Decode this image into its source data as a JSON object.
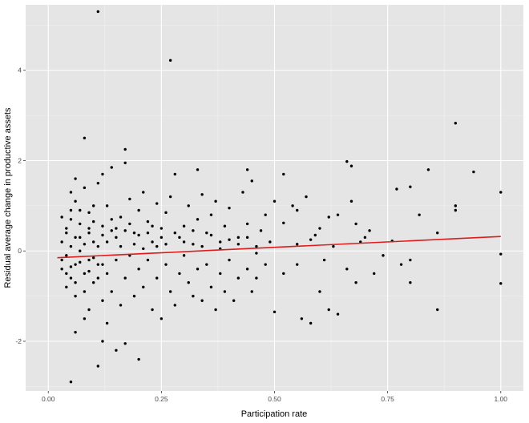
{
  "chart_data": {
    "type": "scatter",
    "title": "",
    "xlabel": "Participation rate",
    "ylabel": "Residual average change in productive assets",
    "xlim": [
      -0.05,
      1.05
    ],
    "ylim": [
      -3.1,
      5.45
    ],
    "x_ticks": [
      {
        "value": 0.0,
        "label": "0.00"
      },
      {
        "value": 0.25,
        "label": "0.25"
      },
      {
        "value": 0.5,
        "label": "0.50"
      },
      {
        "value": 0.75,
        "label": "0.75"
      },
      {
        "value": 1.0,
        "label": "1.00"
      }
    ],
    "y_ticks": [
      {
        "value": -2,
        "label": "-2"
      },
      {
        "value": 0,
        "label": "0"
      },
      {
        "value": 2,
        "label": "2"
      },
      {
        "value": 4,
        "label": "4"
      }
    ],
    "grid": true,
    "background": "#e5e5e5",
    "grid_color": "#ffffff",
    "point_color": "#000000",
    "fit_line_color": "#dd1c1c",
    "fit_line": {
      "x": [
        0.02,
        1.0
      ],
      "y": [
        -0.15,
        0.32
      ]
    },
    "series": [
      {
        "points": [
          [
            0.11,
            5.3
          ],
          [
            0.27,
            4.22
          ],
          [
            0.08,
            2.5
          ],
          [
            0.17,
            2.25
          ],
          [
            0.9,
            2.83
          ],
          [
            0.17,
            1.95
          ],
          [
            0.66,
            1.98
          ],
          [
            0.67,
            1.88
          ],
          [
            0.94,
            1.75
          ],
          [
            0.84,
            1.8
          ],
          [
            0.44,
            1.8
          ],
          [
            0.52,
            1.7
          ],
          [
            0.33,
            1.8
          ],
          [
            0.28,
            1.7
          ],
          [
            0.14,
            1.85
          ],
          [
            0.12,
            1.7
          ],
          [
            0.45,
            1.55
          ],
          [
            0.8,
            1.42
          ],
          [
            0.77,
            1.37
          ],
          [
            1.0,
            1.3
          ],
          [
            0.9,
            1.0
          ],
          [
            0.9,
            0.9
          ],
          [
            0.82,
            0.8
          ],
          [
            0.86,
            0.4
          ],
          [
            0.76,
            0.22
          ],
          [
            0.71,
            0.45
          ],
          [
            0.7,
            0.3
          ],
          [
            0.68,
            0.6
          ],
          [
            0.67,
            1.1
          ],
          [
            0.64,
            0.8
          ],
          [
            0.62,
            0.75
          ],
          [
            0.6,
            0.5
          ],
          [
            0.59,
            0.35
          ],
          [
            0.57,
            1.2
          ],
          [
            0.55,
            0.9
          ],
          [
            0.54,
            1.0
          ],
          [
            0.52,
            0.62
          ],
          [
            0.5,
            1.1
          ],
          [
            0.48,
            0.8
          ],
          [
            0.47,
            0.45
          ],
          [
            0.46,
            0.1
          ],
          [
            0.44,
            0.6
          ],
          [
            0.43,
            1.3
          ],
          [
            0.42,
            0.3
          ],
          [
            0.4,
            0.95
          ],
          [
            0.39,
            0.55
          ],
          [
            0.38,
            0.2
          ],
          [
            0.37,
            1.1
          ],
          [
            0.36,
            0.8
          ],
          [
            0.35,
            0.4
          ],
          [
            0.34,
            1.25
          ],
          [
            0.33,
            0.7
          ],
          [
            0.32,
            0.15
          ],
          [
            0.31,
            1.0
          ],
          [
            0.3,
            0.55
          ],
          [
            0.29,
            0.3
          ],
          [
            0.27,
            1.2
          ],
          [
            0.26,
            0.85
          ],
          [
            0.25,
            0.5
          ],
          [
            0.24,
            1.05
          ],
          [
            0.23,
            0.2
          ],
          [
            0.22,
            0.65
          ],
          [
            0.21,
            1.3
          ],
          [
            0.2,
            0.9
          ],
          [
            0.19,
            0.4
          ],
          [
            0.18,
            1.15
          ],
          [
            0.16,
            0.75
          ],
          [
            0.15,
            0.3
          ],
          [
            0.13,
            1.0
          ],
          [
            0.12,
            0.55
          ],
          [
            0.11,
            1.5
          ],
          [
            0.1,
            0.2
          ],
          [
            0.09,
            0.85
          ],
          [
            0.08,
            1.4
          ],
          [
            0.07,
            0.6
          ],
          [
            0.06,
            1.1
          ],
          [
            0.05,
            0.9
          ],
          [
            0.04,
            0.4
          ],
          [
            0.03,
            0.75
          ],
          [
            0.06,
            1.6
          ],
          [
            0.05,
            1.3
          ],
          [
            0.07,
            0.3
          ],
          [
            0.09,
            0.5
          ],
          [
            0.1,
            1.0
          ],
          [
            0.14,
            0.45
          ],
          [
            0.05,
            0.1
          ],
          [
            0.04,
            -0.1
          ],
          [
            0.06,
            -0.3
          ],
          [
            0.07,
            0.0
          ],
          [
            0.08,
            -0.5
          ],
          [
            0.05,
            -0.6
          ],
          [
            0.04,
            -0.8
          ],
          [
            0.06,
            -1.0
          ],
          [
            0.03,
            -0.4
          ],
          [
            0.09,
            -0.2
          ],
          [
            0.1,
            -0.7
          ],
          [
            0.11,
            -0.3
          ],
          [
            0.12,
            -1.1
          ],
          [
            0.13,
            -0.5
          ],
          [
            0.14,
            -0.9
          ],
          [
            0.15,
            -0.2
          ],
          [
            0.16,
            -1.2
          ],
          [
            0.17,
            -0.6
          ],
          [
            0.18,
            -0.1
          ],
          [
            0.19,
            -1.0
          ],
          [
            0.2,
            -0.4
          ],
          [
            0.21,
            -0.8
          ],
          [
            0.22,
            -0.2
          ],
          [
            0.23,
            -1.3
          ],
          [
            0.24,
            -0.6
          ],
          [
            0.25,
            -1.5
          ],
          [
            0.26,
            -0.3
          ],
          [
            0.27,
            -0.9
          ],
          [
            0.28,
            -1.2
          ],
          [
            0.29,
            -0.5
          ],
          [
            0.3,
            -0.1
          ],
          [
            0.31,
            -0.7
          ],
          [
            0.32,
            -1.0
          ],
          [
            0.33,
            -0.4
          ],
          [
            0.34,
            -1.1
          ],
          [
            0.35,
            -0.3
          ],
          [
            0.36,
            -0.8
          ],
          [
            0.37,
            -1.3
          ],
          [
            0.38,
            -0.5
          ],
          [
            0.39,
            -0.9
          ],
          [
            0.4,
            -0.2
          ],
          [
            0.41,
            -1.1
          ],
          [
            0.42,
            -0.6
          ],
          [
            0.44,
            -0.4
          ],
          [
            0.45,
            -0.9
          ],
          [
            0.46,
            -0.6
          ],
          [
            0.48,
            -0.3
          ],
          [
            0.5,
            -1.35
          ],
          [
            0.52,
            -0.5
          ],
          [
            0.55,
            -0.3
          ],
          [
            0.56,
            -1.5
          ],
          [
            0.58,
            -1.6
          ],
          [
            0.6,
            -0.9
          ],
          [
            0.61,
            -0.2
          ],
          [
            0.62,
            -1.3
          ],
          [
            0.64,
            -1.4
          ],
          [
            0.66,
            -0.4
          ],
          [
            0.68,
            -0.7
          ],
          [
            0.72,
            -0.5
          ],
          [
            0.78,
            -0.3
          ],
          [
            0.8,
            -0.7
          ],
          [
            0.8,
            -0.2
          ],
          [
            0.86,
            -1.3
          ],
          [
            1.0,
            -0.07
          ],
          [
            1.0,
            -0.72
          ],
          [
            0.05,
            -2.9
          ],
          [
            0.11,
            -2.55
          ],
          [
            0.15,
            -2.2
          ],
          [
            0.2,
            -2.4
          ],
          [
            0.12,
            -2.0
          ],
          [
            0.08,
            -1.5
          ],
          [
            0.17,
            -2.05
          ],
          [
            0.06,
            -1.8
          ],
          [
            0.09,
            -1.3
          ],
          [
            0.13,
            -1.6
          ],
          [
            0.03,
            0.2
          ],
          [
            0.04,
            0.5
          ],
          [
            0.05,
            0.7
          ],
          [
            0.06,
            0.3
          ],
          [
            0.07,
            0.9
          ],
          [
            0.08,
            0.15
          ],
          [
            0.09,
            0.4
          ],
          [
            0.1,
            0.65
          ],
          [
            0.11,
            0.1
          ],
          [
            0.12,
            0.35
          ],
          [
            0.03,
            -0.2
          ],
          [
            0.04,
            -0.5
          ],
          [
            0.05,
            -0.35
          ],
          [
            0.06,
            -0.7
          ],
          [
            0.07,
            -0.25
          ],
          [
            0.08,
            -0.9
          ],
          [
            0.09,
            -0.45
          ],
          [
            0.1,
            -0.15
          ],
          [
            0.11,
            -0.6
          ],
          [
            0.12,
            -0.3
          ],
          [
            0.13,
            0.2
          ],
          [
            0.14,
            0.7
          ],
          [
            0.15,
            0.5
          ],
          [
            0.16,
            0.1
          ],
          [
            0.17,
            0.45
          ],
          [
            0.18,
            0.6
          ],
          [
            0.19,
            0.15
          ],
          [
            0.2,
            0.35
          ],
          [
            0.21,
            0.05
          ],
          [
            0.22,
            0.4
          ],
          [
            0.23,
            0.55
          ],
          [
            0.24,
            0.1
          ],
          [
            0.25,
            0.3
          ],
          [
            0.26,
            0.15
          ],
          [
            0.28,
            0.4
          ],
          [
            0.3,
            0.2
          ],
          [
            0.32,
            0.45
          ],
          [
            0.34,
            0.1
          ],
          [
            0.36,
            0.35
          ],
          [
            0.38,
            0.05
          ],
          [
            0.4,
            0.25
          ],
          [
            0.42,
            0.15
          ],
          [
            0.44,
            0.3
          ],
          [
            0.46,
            -0.05
          ],
          [
            0.49,
            0.2
          ],
          [
            0.55,
            0.15
          ],
          [
            0.58,
            0.25
          ],
          [
            0.63,
            0.1
          ],
          [
            0.69,
            0.2
          ],
          [
            0.74,
            -0.1
          ]
        ]
      }
    ]
  }
}
